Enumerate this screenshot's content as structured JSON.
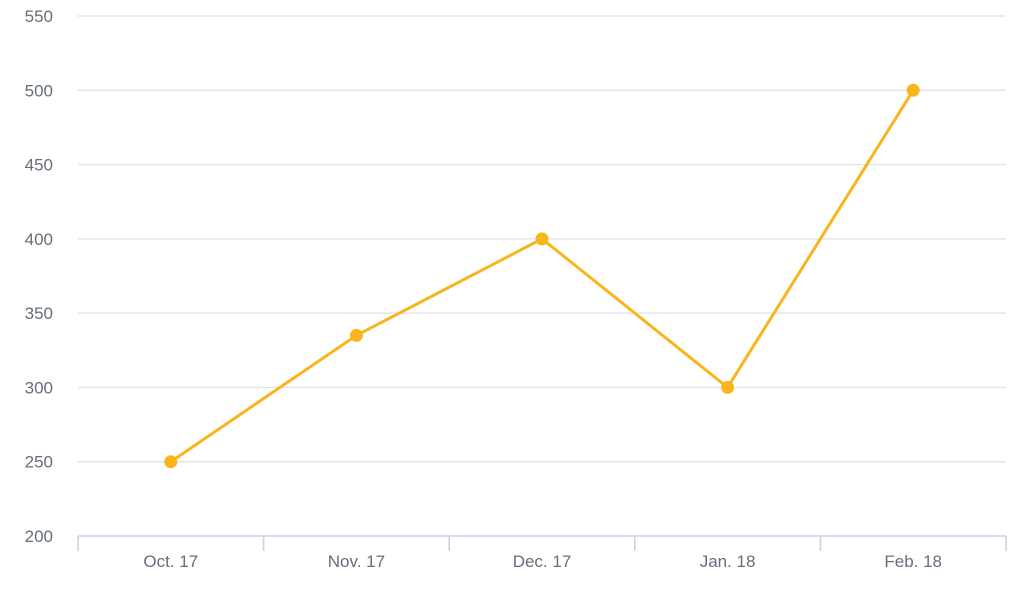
{
  "chart_data": {
    "type": "line",
    "title": "",
    "xlabel": "",
    "ylabel": "",
    "categories": [
      "Oct. 17",
      "Nov. 17",
      "Dec. 17",
      "Jan. 18",
      "Feb. 18"
    ],
    "y_ticks": [
      "200",
      "250",
      "300",
      "350",
      "400",
      "450",
      "500",
      "550"
    ],
    "ylim": [
      200,
      550
    ],
    "grid": true,
    "legend": "none",
    "series": [
      {
        "values": [
          250,
          335,
          400,
          300,
          500
        ],
        "color": "#f8b51c"
      }
    ]
  }
}
